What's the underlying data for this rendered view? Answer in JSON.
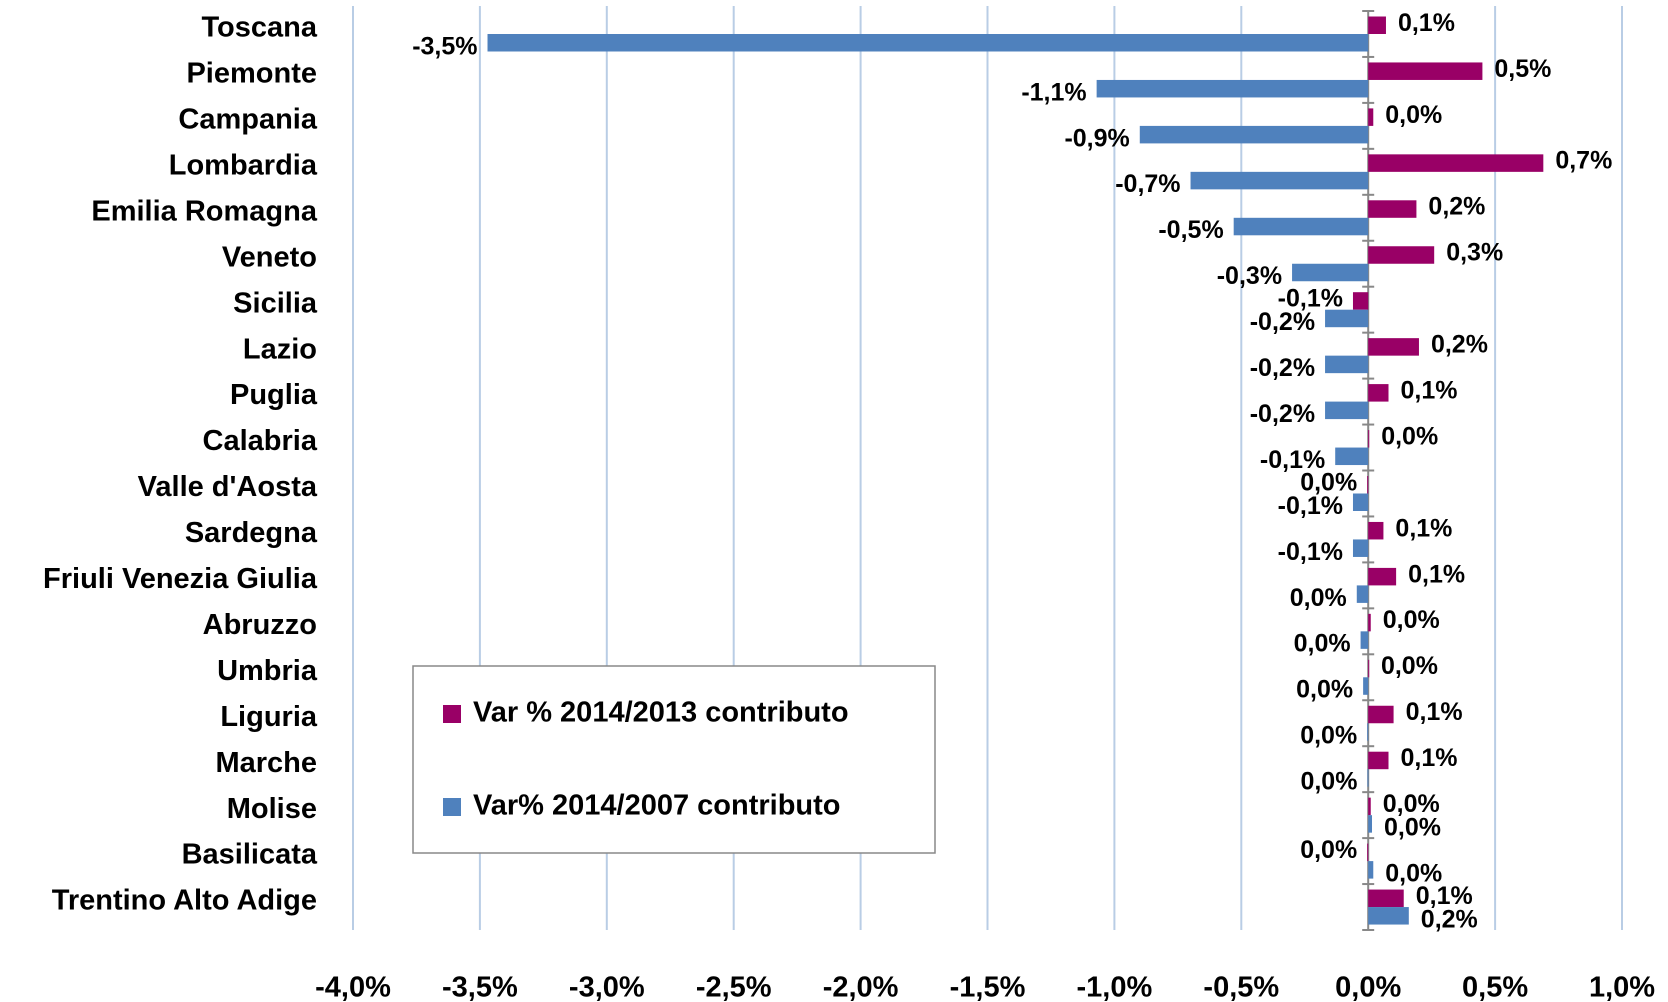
{
  "chart_data": {
    "type": "hbar",
    "categories": [
      "Toscana",
      "Piemonte",
      "Campania",
      "Lombardia",
      "Emilia Romagna",
      "Veneto",
      "Sicilia",
      "Lazio",
      "Puglia",
      "Calabria",
      "Valle d'Aosta",
      "Sardegna",
      "Friuli Venezia Giulia",
      "Abruzzo",
      "Umbria",
      "Liguria",
      "Marche",
      "Molise",
      "Basilicata",
      "Trentino Alto Adige"
    ],
    "series": [
      {
        "name": "Var % 2014/2013 contributo",
        "color": "#990066",
        "values": [
          0.07,
          0.45,
          0.02,
          0.69,
          0.19,
          0.26,
          -0.06,
          0.2,
          0.08,
          0.004,
          -0.004,
          0.06,
          0.11,
          0.01,
          0.003,
          0.1,
          0.08,
          0.01,
          -0.004,
          0.14
        ],
        "value_labels": [
          "0,1%",
          "0,5%",
          "0,0%",
          "0,7%",
          "0,2%",
          "0,3%",
          "-0,1%",
          "0,2%",
          "0,1%",
          "0,0%",
          "0,0%",
          "0,1%",
          "0,1%",
          "0,0%",
          "0,0%",
          "0,1%",
          "0,1%",
          "0,0%",
          "0,0%",
          "0,1%"
        ]
      },
      {
        "name": "Var% 2014/2007 contributo",
        "color": "#4f81bd",
        "values": [
          -3.47,
          -1.07,
          -0.9,
          -0.7,
          -0.53,
          -0.3,
          -0.17,
          -0.17,
          -0.17,
          -0.13,
          -0.06,
          -0.06,
          -0.045,
          -0.03,
          -0.02,
          -0.004,
          -0.003,
          0.015,
          0.02,
          0.16
        ],
        "value_labels": [
          "-3,5%",
          "-1,1%",
          "-0,9%",
          "-0,7%",
          "-0,5%",
          "-0,3%",
          "-0,2%",
          "-0,2%",
          "-0,2%",
          "-0,1%",
          "-0,1%",
          "-0,1%",
          "0,0%",
          "0,0%",
          "0,0%",
          "0,0%",
          "0,0%",
          "0,0%",
          "0,0%",
          "0,2%"
        ]
      }
    ],
    "xlim": [
      -4.0,
      1.0
    ],
    "xticks": [
      {
        "value": -4.0,
        "label": "-4,0%"
      },
      {
        "value": -3.5,
        "label": "-3,5%"
      },
      {
        "value": -3.0,
        "label": "-3,0%"
      },
      {
        "value": -2.5,
        "label": "-2,5%"
      },
      {
        "value": -2.0,
        "label": "-2,0%"
      },
      {
        "value": -1.5,
        "label": "-1,5%"
      },
      {
        "value": -1.0,
        "label": "-1,0%"
      },
      {
        "value": -0.5,
        "label": "-0,5%"
      },
      {
        "value": 0.0,
        "label": "0,0%"
      },
      {
        "value": 0.5,
        "label": "0,5%"
      },
      {
        "value": 1.0,
        "label": "1,0%"
      }
    ],
    "grid": true
  }
}
